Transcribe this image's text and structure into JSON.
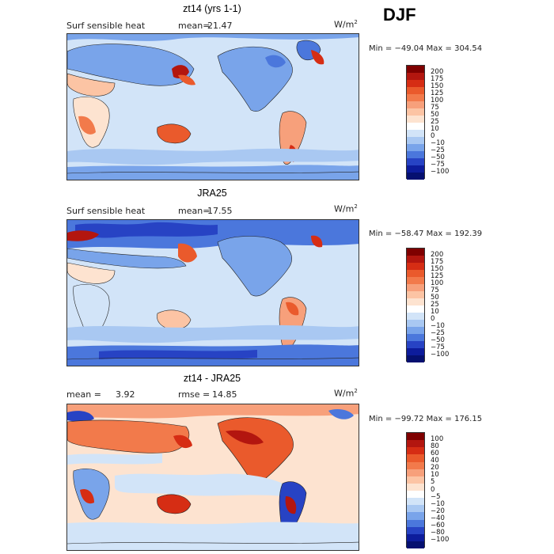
{
  "season": "DJF",
  "units_base": "W/m",
  "units_exp": "2",
  "panels": [
    {
      "title": "zt14 (yrs 1-1)",
      "left_label": "Surf sensible heat",
      "stat_label": "mean=",
      "stat_value": "21.47",
      "minmax": "Min = −49.04  Max = 304.54",
      "levels": [
        "200",
        "175",
        "150",
        "125",
        "100",
        "75",
        "50",
        "25",
        "10",
        "0",
        "−10",
        "−25",
        "−50",
        "−75",
        "−100"
      ],
      "colors": [
        "#7f0000",
        "#b3160f",
        "#d62d14",
        "#ea5a2c",
        "#f27a4b",
        "#f7a07b",
        "#fcc4a4",
        "#fde3d0",
        "#ffffff",
        "#d2e4f8",
        "#a9c8f2",
        "#79a4ea",
        "#4b77dc",
        "#2743c4",
        "#0d1c9c",
        "#051070"
      ]
    },
    {
      "title": "JRA25",
      "left_label": "Surf sensible heat",
      "stat_label": "mean=",
      "stat_value": "17.55",
      "minmax": "Min = −58.47  Max = 192.39",
      "levels": [
        "200",
        "175",
        "150",
        "125",
        "100",
        "75",
        "50",
        "25",
        "10",
        "0",
        "−10",
        "−25",
        "−50",
        "−75",
        "−100"
      ],
      "colors": [
        "#7f0000",
        "#b3160f",
        "#d62d14",
        "#ea5a2c",
        "#f27a4b",
        "#f7a07b",
        "#fcc4a4",
        "#fde3d0",
        "#ffffff",
        "#d2e4f8",
        "#a9c8f2",
        "#79a4ea",
        "#4b77dc",
        "#2743c4",
        "#0d1c9c",
        "#051070"
      ]
    },
    {
      "title": "zt14 - JRA25",
      "left_label": "mean =",
      "left_value": "3.92",
      "stat_label": "rmse =",
      "stat_value": "14.85",
      "minmax": "Min = −99.72  Max = 176.15",
      "levels": [
        "100",
        "80",
        "60",
        "40",
        "20",
        "10",
        "5",
        "0",
        "−5",
        "−10",
        "−20",
        "−40",
        "−60",
        "−80",
        "−100"
      ],
      "colors": [
        "#7f0000",
        "#b3160f",
        "#d62d14",
        "#ea5a2c",
        "#f27a4b",
        "#f7a07b",
        "#fcc4a4",
        "#fde3d0",
        "#ffffff",
        "#d2e4f8",
        "#a9c8f2",
        "#79a4ea",
        "#4b77dc",
        "#2743c4",
        "#0d1c9c",
        "#051070"
      ]
    }
  ]
}
